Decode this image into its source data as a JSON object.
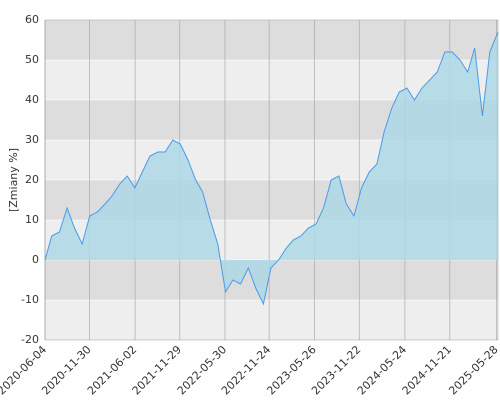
{
  "chart_data": {
    "type": "area",
    "y_label": "[Zmiany %]",
    "x": [
      "2020-06-04",
      "2020-07-01",
      "2020-08-01",
      "2020-09-01",
      "2020-10-01",
      "2020-11-01",
      "2020-12-01",
      "2021-01-01",
      "2021-02-01",
      "2021-03-01",
      "2021-04-01",
      "2021-05-01",
      "2021-06-01",
      "2021-07-01",
      "2021-08-01",
      "2021-09-01",
      "2021-10-01",
      "2021-11-01",
      "2021-12-01",
      "2022-01-01",
      "2022-02-01",
      "2022-03-01",
      "2022-04-01",
      "2022-05-01",
      "2022-06-01",
      "2022-07-01",
      "2022-08-01",
      "2022-09-01",
      "2022-10-01",
      "2022-11-01",
      "2022-12-01",
      "2023-01-01",
      "2023-02-01",
      "2023-03-01",
      "2023-04-01",
      "2023-05-01",
      "2023-06-01",
      "2023-07-01",
      "2023-08-01",
      "2023-09-01",
      "2023-10-01",
      "2023-11-01",
      "2023-12-01",
      "2024-01-01",
      "2024-02-01",
      "2024-03-01",
      "2024-04-01",
      "2024-05-01",
      "2024-06-01",
      "2024-07-01",
      "2024-08-01",
      "2024-09-01",
      "2024-10-01",
      "2024-11-01",
      "2024-12-01",
      "2025-01-01",
      "2025-02-01",
      "2025-03-01",
      "2025-04-01",
      "2025-05-01",
      "2025-06-03"
    ],
    "values": [
      0,
      6,
      7,
      13,
      8,
      4,
      11,
      12,
      14,
      16,
      19,
      21,
      18,
      22,
      26,
      27,
      27,
      30,
      29,
      25,
      20,
      17,
      10,
      4,
      -8,
      -5,
      -6,
      -2,
      -7,
      -11,
      -2,
      0,
      3,
      5,
      6,
      8,
      9,
      13,
      20,
      21,
      14,
      11,
      18,
      22,
      24,
      32,
      38,
      42,
      43,
      40,
      43,
      45,
      47,
      52,
      52,
      50,
      47,
      53,
      36,
      52,
      57
    ],
    "line_color": "#4a9ae8",
    "fill_color": "#add8e6",
    "band_colors": [
      "#dddddd",
      "#eeeeee"
    ],
    "xlim": [
      "2020-06-04",
      "2025-06-03"
    ],
    "xticks": [
      "2020-06-04",
      "2020-11-30",
      "2021-06-02",
      "2021-11-29",
      "2022-05-30",
      "2022-11-24",
      "2023-05-26",
      "2023-11-22",
      "2024-05-24",
      "2024-11-21",
      "2025-05-28"
    ],
    "ylim": [
      -20,
      60
    ],
    "yticks": [
      -20,
      -10,
      0,
      10,
      20,
      30,
      40,
      50,
      60
    ],
    "grid": true
  }
}
